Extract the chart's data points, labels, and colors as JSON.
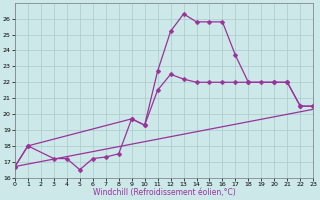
{
  "xlabel": "Windchill (Refroidissement éolien,°C)",
  "background_color": "#cce8e8",
  "grid_color": "#aacccc",
  "line_color": "#993399",
  "xlim": [
    0,
    23
  ],
  "ylim": [
    16,
    27
  ],
  "line1_x": [
    0,
    1,
    3,
    4,
    5,
    6,
    7,
    8,
    9,
    10,
    11,
    12,
    13,
    14,
    15,
    16,
    17,
    18,
    20,
    21,
    22,
    23
  ],
  "line1_y": [
    16.7,
    18.0,
    17.2,
    17.2,
    16.5,
    17.2,
    17.3,
    17.5,
    19.7,
    19.3,
    22.7,
    25.2,
    26.3,
    25.8,
    25.8,
    25.8,
    23.7,
    22.0,
    22.0,
    22.0,
    20.5,
    20.5
  ],
  "line2_x": [
    0,
    1,
    9,
    10,
    11,
    12,
    13,
    14,
    15,
    16,
    17,
    18,
    19,
    20,
    21,
    22,
    23
  ],
  "line2_y": [
    16.7,
    18.0,
    19.7,
    19.3,
    21.5,
    22.5,
    22.2,
    22.0,
    22.0,
    22.0,
    22.0,
    22.0,
    22.0,
    22.0,
    22.0,
    20.5,
    20.5
  ],
  "line3_x": [
    0,
    23
  ],
  "line3_y": [
    16.7,
    20.3
  ]
}
